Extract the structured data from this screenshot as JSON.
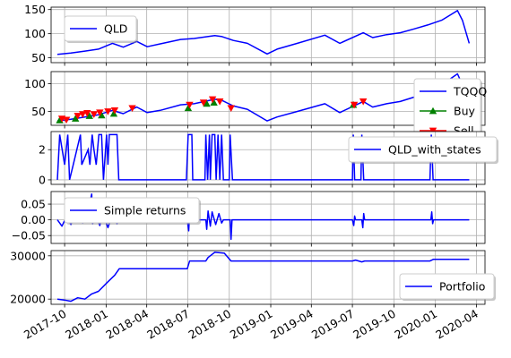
{
  "chart_data": {
    "type": "line",
    "x_ticks": [
      "2017-10",
      "2018-01",
      "2018-04",
      "2018-07",
      "2018-10",
      "2019-01",
      "2019-04",
      "2019-07",
      "2019-10",
      "2020-01",
      "2020-04"
    ],
    "x_range": [
      "2017-09-01",
      "2020-04-20"
    ],
    "grid": true,
    "panels": [
      {
        "ylim": [
          40,
          155
        ],
        "yticks": [
          50,
          100,
          150
        ],
        "ytick_labels": [
          "50",
          "100",
          "150"
        ],
        "legend": "top-left",
        "series": [
          {
            "name": "QLD",
            "kind": "line",
            "color": "#0000ff",
            "points": [
              [
                "2017-09-15",
                57
              ],
              [
                "2017-10-15",
                60
              ],
              [
                "2017-11-15",
                64
              ],
              [
                "2017-12-15",
                68
              ],
              [
                "2018-01-15",
                80
              ],
              [
                "2018-02-08",
                72
              ],
              [
                "2018-03-10",
                84
              ],
              [
                "2018-04-02",
                73
              ],
              [
                "2018-05-01",
                79
              ],
              [
                "2018-06-15",
                88
              ],
              [
                "2018-07-15",
                90
              ],
              [
                "2018-08-30",
                96
              ],
              [
                "2018-09-15",
                94
              ],
              [
                "2018-10-10",
                86
              ],
              [
                "2018-11-10",
                80
              ],
              [
                "2018-12-24",
                58
              ],
              [
                "2019-01-15",
                68
              ],
              [
                "2019-03-01",
                80
              ],
              [
                "2019-05-01",
                97
              ],
              [
                "2019-06-03",
                80
              ],
              [
                "2019-07-25",
                102
              ],
              [
                "2019-08-15",
                92
              ],
              [
                "2019-09-15",
                98
              ],
              [
                "2019-10-15",
                102
              ],
              [
                "2019-11-15",
                110
              ],
              [
                "2019-12-15",
                118
              ],
              [
                "2020-01-15",
                128
              ],
              [
                "2020-02-19",
                148
              ],
              [
                "2020-03-01",
                128
              ],
              [
                "2020-03-16",
                80
              ]
            ]
          }
        ]
      },
      {
        "ylim": [
          25,
          122
        ],
        "yticks": [
          50,
          100
        ],
        "ytick_labels": [
          "50",
          "100"
        ],
        "legend": "right",
        "series": [
          {
            "name": "TQQQ",
            "kind": "line",
            "color": "#0000ff",
            "points": [
              [
                "2017-09-15",
                33
              ],
              [
                "2017-10-15",
                36
              ],
              [
                "2017-11-15",
                40
              ],
              [
                "2017-12-15",
                44
              ],
              [
                "2018-01-15",
                52
              ],
              [
                "2018-02-08",
                46
              ],
              [
                "2018-03-10",
                58
              ],
              [
                "2018-04-02",
                48
              ],
              [
                "2018-05-01",
                52
              ],
              [
                "2018-06-15",
                62
              ],
              [
                "2018-07-15",
                64
              ],
              [
                "2018-08-30",
                72
              ],
              [
                "2018-09-15",
                70
              ],
              [
                "2018-10-10",
                60
              ],
              [
                "2018-11-10",
                54
              ],
              [
                "2018-12-24",
                33
              ],
              [
                "2019-01-15",
                40
              ],
              [
                "2019-03-01",
                50
              ],
              [
                "2019-05-01",
                64
              ],
              [
                "2019-06-03",
                48
              ],
              [
                "2019-07-25",
                68
              ],
              [
                "2019-08-15",
                58
              ],
              [
                "2019-09-15",
                64
              ],
              [
                "2019-10-15",
                68
              ],
              [
                "2019-11-15",
                76
              ],
              [
                "2019-12-15",
                86
              ],
              [
                "2020-01-15",
                98
              ],
              [
                "2020-02-19",
                118
              ],
              [
                "2020-03-01",
                98
              ],
              [
                "2020-03-16",
                52
              ]
            ]
          },
          {
            "name": "Buy",
            "kind": "marker",
            "marker": "triangle-up",
            "color": "#008000",
            "points": [
              [
                "2017-09-20",
                34
              ],
              [
                "2017-10-25",
                37
              ],
              [
                "2017-11-25",
                42
              ],
              [
                "2017-12-22",
                43
              ],
              [
                "2018-01-18",
                46
              ],
              [
                "2018-07-02",
                56
              ],
              [
                "2018-08-12",
                64
              ],
              [
                "2018-08-28",
                66
              ],
              [
                "2019-07-03",
                62
              ]
            ]
          },
          {
            "name": "Sell",
            "kind": "marker",
            "marker": "triangle-down",
            "color": "#ff0000",
            "points": [
              [
                "2017-09-25",
                37
              ],
              [
                "2017-10-05",
                35
              ],
              [
                "2017-10-30",
                42
              ],
              [
                "2017-11-10",
                45
              ],
              [
                "2017-11-20",
                47
              ],
              [
                "2017-12-05",
                45
              ],
              [
                "2017-12-18",
                48
              ],
              [
                "2018-01-05",
                50
              ],
              [
                "2018-01-20",
                52
              ],
              [
                "2018-02-28",
                56
              ],
              [
                "2018-07-05",
                62
              ],
              [
                "2018-08-05",
                66
              ],
              [
                "2018-08-25",
                72
              ],
              [
                "2018-09-10",
                68
              ],
              [
                "2018-10-05",
                56
              ],
              [
                "2019-07-05",
                62
              ],
              [
                "2019-07-25",
                68
              ]
            ]
          }
        ]
      },
      {
        "ylim": [
          -0.3,
          3.2
        ],
        "yticks": [
          0,
          2
        ],
        "ytick_labels": [
          "0",
          "2"
        ],
        "legend": "top-right",
        "series": [
          {
            "name": "QLD_with_states",
            "kind": "step",
            "color": "#0000ff",
            "segments": [
              [
                "2017-09-15",
                0
              ],
              [
                "2017-09-20",
                3
              ],
              [
                "2017-10-01",
                1
              ],
              [
                "2017-10-08",
                3
              ],
              [
                "2017-10-12",
                0
              ],
              [
                "2017-10-20",
                1
              ],
              [
                "2017-11-05",
                3
              ],
              [
                "2017-11-08",
                1
              ],
              [
                "2017-11-22",
                2
              ],
              [
                "2017-11-26",
                1
              ],
              [
                "2017-12-01",
                3
              ],
              [
                "2017-12-05",
                2
              ],
              [
                "2017-12-10",
                1
              ],
              [
                "2017-12-16",
                3
              ],
              [
                "2017-12-22",
                3
              ],
              [
                "2017-12-26",
                0
              ],
              [
                "2018-01-02",
                3
              ],
              [
                "2018-01-05",
                1
              ],
              [
                "2018-01-08",
                3
              ],
              [
                "2018-01-25",
                3
              ],
              [
                "2018-01-29",
                0
              ],
              [
                "2018-06-28",
                0
              ],
              [
                "2018-07-02",
                3
              ],
              [
                "2018-07-10",
                3
              ],
              [
                "2018-07-12",
                0
              ],
              [
                "2018-08-08",
                0
              ],
              [
                "2018-08-10",
                3
              ],
              [
                "2018-08-14",
                0
              ],
              [
                "2018-08-18",
                3
              ],
              [
                "2018-08-20",
                0
              ],
              [
                "2018-08-24",
                3
              ],
              [
                "2018-08-30",
                3
              ],
              [
                "2018-09-02",
                0
              ],
              [
                "2018-09-06",
                3
              ],
              [
                "2018-09-10",
                0
              ],
              [
                "2018-09-14",
                3
              ],
              [
                "2018-09-18",
                0
              ],
              [
                "2018-10-01",
                0
              ],
              [
                "2018-10-03",
                3
              ],
              [
                "2018-10-08",
                0
              ],
              [
                "2019-07-01",
                0
              ],
              [
                "2019-07-03",
                3
              ],
              [
                "2019-07-06",
                0
              ],
              [
                "2019-07-20",
                0
              ],
              [
                "2019-07-22",
                3
              ],
              [
                "2019-07-26",
                0
              ],
              [
                "2019-12-20",
                0
              ],
              [
                "2019-12-23",
                3
              ],
              [
                "2019-12-27",
                0
              ],
              [
                "2020-03-16",
                0
              ]
            ]
          }
        ]
      },
      {
        "ylim": [
          -0.075,
          0.09
        ],
        "yticks": [
          -0.05,
          0.0,
          0.05
        ],
        "ytick_labels": [
          "−0.05",
          "0.00",
          "0.05"
        ],
        "legend": "top-left",
        "series": [
          {
            "name": "Simple returns",
            "kind": "line",
            "color": "#0000ff",
            "points": [
              [
                "2017-09-15",
                0
              ],
              [
                "2017-09-25",
                -0.02
              ],
              [
                "2017-10-05",
                0.01
              ],
              [
                "2017-10-15",
                -0.015
              ],
              [
                "2017-10-25",
                0.02
              ],
              [
                "2017-11-10",
                -0.01
              ],
              [
                "2017-11-20",
                0.015
              ],
              [
                "2017-11-30",
                0.082
              ],
              [
                "2017-12-02",
                -0.012
              ],
              [
                "2017-12-10",
                0.01
              ],
              [
                "2017-12-18",
                -0.018
              ],
              [
                "2017-12-25",
                0.02
              ],
              [
                "2018-01-05",
                -0.025
              ],
              [
                "2018-01-15",
                0.018
              ],
              [
                "2018-01-25",
                -0.012
              ],
              [
                "2018-01-30",
                0
              ],
              [
                "2018-06-30",
                0
              ],
              [
                "2018-07-03",
                -0.035
              ],
              [
                "2018-07-05",
                0.02
              ],
              [
                "2018-07-08",
                0
              ],
              [
                "2018-08-10",
                0
              ],
              [
                "2018-08-12",
                -0.03
              ],
              [
                "2018-08-15",
                0.028
              ],
              [
                "2018-08-20",
                -0.02
              ],
              [
                "2018-08-24",
                0.025
              ],
              [
                "2018-09-01",
                -0.015
              ],
              [
                "2018-09-08",
                0.02
              ],
              [
                "2018-09-14",
                -0.01
              ],
              [
                "2018-09-18",
                0
              ],
              [
                "2018-10-03",
                0
              ],
              [
                "2018-10-05",
                -0.062
              ],
              [
                "2018-10-07",
                0
              ],
              [
                "2019-07-01",
                0
              ],
              [
                "2019-07-04",
                -0.018
              ],
              [
                "2019-07-06",
                0.012
              ],
              [
                "2019-07-08",
                0
              ],
              [
                "2019-07-22",
                0
              ],
              [
                "2019-07-24",
                -0.025
              ],
              [
                "2019-07-26",
                0.02
              ],
              [
                "2019-07-28",
                0
              ],
              [
                "2019-12-22",
                0
              ],
              [
                "2019-12-24",
                0.025
              ],
              [
                "2019-12-26",
                -0.012
              ],
              [
                "2019-12-28",
                0
              ],
              [
                "2020-03-16",
                0
              ]
            ]
          }
        ]
      },
      {
        "ylim": [
          18800,
          31200
        ],
        "yticks": [
          20000,
          30000
        ],
        "ytick_labels": [
          "20000",
          "30000"
        ],
        "legend": "bottom-right",
        "series": [
          {
            "name": "Portfolio",
            "kind": "line",
            "color": "#0000ff",
            "points": [
              [
                "2017-09-15",
                20000
              ],
              [
                "2017-09-30",
                19800
              ],
              [
                "2017-10-15",
                19500
              ],
              [
                "2017-10-30",
                20300
              ],
              [
                "2017-11-15",
                20000
              ],
              [
                "2017-11-30",
                21200
              ],
              [
                "2017-12-15",
                21800
              ],
              [
                "2018-01-05",
                24000
              ],
              [
                "2018-01-20",
                25500
              ],
              [
                "2018-01-30",
                27000
              ],
              [
                "2018-06-30",
                27000
              ],
              [
                "2018-07-05",
                28800
              ],
              [
                "2018-08-10",
                28800
              ],
              [
                "2018-08-15",
                29600
              ],
              [
                "2018-08-30",
                30800
              ],
              [
                "2018-09-20",
                30600
              ],
              [
                "2018-10-05",
                28800
              ],
              [
                "2019-07-01",
                28800
              ],
              [
                "2019-07-08",
                29000
              ],
              [
                "2019-07-22",
                28600
              ],
              [
                "2019-07-28",
                28800
              ],
              [
                "2019-12-20",
                28800
              ],
              [
                "2019-12-28",
                29200
              ],
              [
                "2020-03-16",
                29200
              ]
            ]
          }
        ]
      }
    ]
  }
}
